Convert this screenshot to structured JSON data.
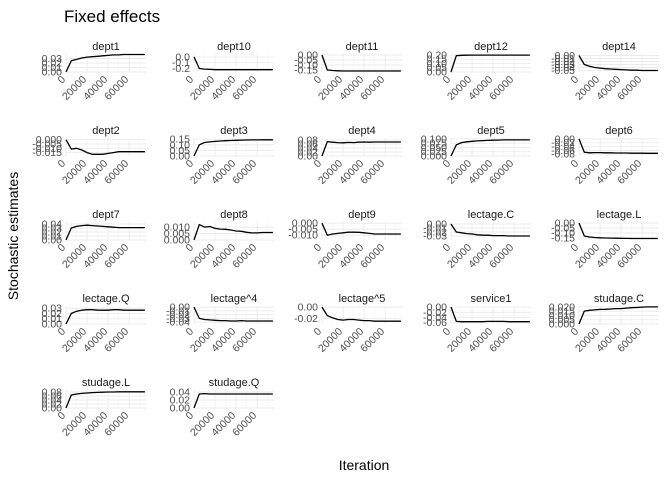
{
  "chart_data": {
    "type": "line",
    "title": "Fixed effects",
    "xlabel": "Iteration",
    "ylabel": "Stochastic estimates",
    "xlim": [
      0,
      76000
    ],
    "x_ticks": [
      "0",
      "20000",
      "40000",
      "60000"
    ],
    "x": [
      0,
      5000,
      10000,
      15000,
      20000,
      25000,
      30000,
      35000,
      40000,
      45000,
      50000,
      55000,
      60000,
      65000,
      70000,
      75000
    ],
    "grid": true,
    "legend": "none",
    "panels": [
      {
        "name": "dept1",
        "ylim": [
          0,
          0.04
        ],
        "y_ticks": [
          "0.00",
          "0.01",
          "0.02",
          "0.03"
        ],
        "values": [
          0.0,
          0.025,
          0.028,
          0.031,
          0.033,
          0.034,
          0.035,
          0.036,
          0.037,
          0.038,
          0.038,
          0.039,
          0.039,
          0.039,
          0.039,
          0.039
        ]
      },
      {
        "name": "dept10",
        "ylim": [
          -0.26,
          0.05
        ],
        "y_ticks": [
          "0.0",
          "-0.1",
          "-0.2"
        ],
        "values": [
          0.0,
          -0.2,
          -0.21,
          -0.215,
          -0.22,
          -0.22,
          -0.22,
          -0.22,
          -0.22,
          -0.22,
          -0.22,
          -0.22,
          -0.22,
          -0.22,
          -0.22,
          -0.22
        ]
      },
      {
        "name": "dept11",
        "ylim": [
          -0.17,
          0.01
        ],
        "y_ticks": [
          "0.00",
          "-0.05",
          "-0.10",
          "-0.15"
        ],
        "values": [
          0.0,
          -0.15,
          -0.155,
          -0.158,
          -0.16,
          -0.16,
          -0.16,
          -0.16,
          -0.16,
          -0.16,
          -0.16,
          -0.16,
          -0.16,
          -0.16,
          -0.16,
          -0.16
        ]
      },
      {
        "name": "dept12",
        "ylim": [
          0,
          0.21
        ],
        "y_ticks": [
          "0.00",
          "0.05",
          "0.10",
          "0.15",
          "0.20"
        ],
        "values": [
          0.0,
          0.19,
          0.195,
          0.196,
          0.197,
          0.197,
          0.197,
          0.197,
          0.197,
          0.197,
          0.197,
          0.197,
          0.197,
          0.197,
          0.197,
          0.197
        ]
      },
      {
        "name": "dept14",
        "ylim": [
          -0.055,
          0.005
        ],
        "y_ticks": [
          "0.00",
          "-0.01",
          "-0.02",
          "-0.03",
          "-0.04",
          "-0.05"
        ],
        "values": [
          0.0,
          -0.03,
          -0.036,
          -0.04,
          -0.042,
          -0.044,
          -0.045,
          -0.046,
          -0.047,
          -0.048,
          -0.049,
          -0.049,
          -0.05,
          -0.05,
          -0.05,
          -0.05
        ]
      },
      {
        "name": "dept2",
        "ylim": [
          -0.019,
          0.002
        ],
        "y_ticks": [
          "0.000",
          "-0.005",
          "-0.010",
          "-0.015"
        ],
        "values": [
          0.0,
          -0.011,
          -0.01,
          -0.012,
          -0.015,
          -0.017,
          -0.017,
          -0.017,
          -0.016,
          -0.015,
          -0.014,
          -0.014,
          -0.014,
          -0.014,
          -0.014,
          -0.014
        ]
      },
      {
        "name": "dept3",
        "ylim": [
          0,
          0.16
        ],
        "y_ticks": [
          "0.00",
          "0.05",
          "0.10",
          "0.15"
        ],
        "values": [
          0.0,
          0.1,
          0.12,
          0.125,
          0.13,
          0.133,
          0.136,
          0.138,
          0.14,
          0.141,
          0.142,
          0.143,
          0.143,
          0.144,
          0.144,
          0.144
        ]
      },
      {
        "name": "dept4",
        "ylim": [
          0,
          0.09
        ],
        "y_ticks": [
          "0.00",
          "0.02",
          "0.04",
          "0.06",
          "0.08"
        ],
        "values": [
          0.0,
          0.072,
          0.069,
          0.067,
          0.066,
          0.068,
          0.067,
          0.069,
          0.07,
          0.069,
          0.07,
          0.07,
          0.07,
          0.07,
          0.07,
          0.07
        ]
      },
      {
        "name": "dept5",
        "ylim": [
          0,
          0.105
        ],
        "y_ticks": [
          "0.000",
          "0.025",
          "0.050",
          "0.075",
          "0.100"
        ],
        "values": [
          0.0,
          0.065,
          0.078,
          0.083,
          0.086,
          0.088,
          0.09,
          0.091,
          0.092,
          0.093,
          0.094,
          0.094,
          0.094,
          0.094,
          0.094,
          0.094
        ]
      },
      {
        "name": "dept6",
        "ylim": [
          -0.09,
          0.005
        ],
        "y_ticks": [
          "0.00",
          "-0.02",
          "-0.04",
          "-0.06",
          "-0.08"
        ],
        "values": [
          0.0,
          -0.07,
          -0.073,
          -0.072,
          -0.072,
          -0.073,
          -0.073,
          -0.074,
          -0.074,
          -0.074,
          -0.075,
          -0.075,
          -0.075,
          -0.076,
          -0.076,
          -0.076
        ]
      },
      {
        "name": "dept7",
        "ylim": [
          0,
          0.045
        ],
        "y_ticks": [
          "0.00",
          "0.01",
          "0.02",
          "0.03",
          "0.04"
        ],
        "values": [
          0.0,
          0.03,
          0.034,
          0.036,
          0.037,
          0.036,
          0.035,
          0.034,
          0.033,
          0.032,
          0.031,
          0.031,
          0.031,
          0.031,
          0.031,
          0.031
        ]
      },
      {
        "name": "dept8",
        "ylim": [
          0,
          0.014
        ],
        "y_ticks": [
          "0.000",
          "0.005",
          "0.010"
        ],
        "values": [
          0.0,
          0.012,
          0.01,
          0.0105,
          0.009,
          0.0085,
          0.0083,
          0.0078,
          0.007,
          0.0068,
          0.006,
          0.0055,
          0.0055,
          0.0058,
          0.0058,
          0.0058
        ]
      },
      {
        "name": "dept9",
        "ylim": [
          -0.014,
          0.001
        ],
        "y_ticks": [
          "0.000",
          "-0.005",
          "-0.010"
        ],
        "values": [
          0.0,
          -0.01,
          -0.009,
          -0.0085,
          -0.008,
          -0.0075,
          -0.0075,
          -0.0076,
          -0.008,
          -0.0085,
          -0.009,
          -0.009,
          -0.009,
          -0.009,
          -0.009,
          -0.009
        ]
      },
      {
        "name": "lectage.C",
        "ylim": [
          -0.04,
          0.005
        ],
        "y_ticks": [
          "0.00",
          "-0.01",
          "-0.02",
          "-0.03"
        ],
        "values": [
          0.0,
          -0.02,
          -0.022,
          -0.024,
          -0.025,
          -0.027,
          -0.028,
          -0.028,
          -0.029,
          -0.029,
          -0.029,
          -0.03,
          -0.03,
          -0.03,
          -0.03,
          -0.03
        ]
      },
      {
        "name": "lectage.L",
        "ylim": [
          -0.17,
          0.01
        ],
        "y_ticks": [
          "0.00",
          "-0.05",
          "-0.10",
          "-0.15"
        ],
        "values": [
          0.0,
          -0.13,
          -0.14,
          -0.145,
          -0.148,
          -0.15,
          -0.151,
          -0.152,
          -0.153,
          -0.154,
          -0.155,
          -0.155,
          -0.155,
          -0.155,
          -0.155,
          -0.155
        ]
      },
      {
        "name": "lectage.Q",
        "ylim": [
          0,
          0.034
        ],
        "y_ticks": [
          "0.00",
          "0.01",
          "0.02",
          "0.03"
        ],
        "values": [
          0.0,
          0.02,
          0.024,
          0.026,
          0.027,
          0.027,
          0.026,
          0.026,
          0.026,
          0.027,
          0.027,
          0.026,
          0.026,
          0.026,
          0.026,
          0.026
        ]
      },
      {
        "name": "lectage^4",
        "ylim": [
          -0.045,
          0.003
        ],
        "y_ticks": [
          "0.00",
          "-0.01",
          "-0.02",
          "-0.03",
          "-0.04"
        ],
        "values": [
          0.0,
          -0.03,
          -0.033,
          -0.034,
          -0.035,
          -0.036,
          -0.036,
          -0.037,
          -0.037,
          -0.036,
          -0.037,
          -0.037,
          -0.037,
          -0.037,
          -0.037,
          -0.037
        ]
      },
      {
        "name": "lectage^5",
        "ylim": [
          -0.03,
          0.002
        ],
        "y_ticks": [
          "0.00",
          "-0.02"
        ],
        "values": [
          0.0,
          -0.015,
          -0.019,
          -0.022,
          -0.023,
          -0.022,
          -0.022,
          -0.023,
          -0.024,
          -0.024,
          -0.025,
          -0.025,
          -0.025,
          -0.025,
          -0.025,
          -0.025
        ]
      },
      {
        "name": "service1",
        "ylim": [
          -0.065,
          0.004
        ],
        "y_ticks": [
          "0.00",
          "-0.02",
          "-0.04",
          "-0.06"
        ],
        "values": [
          0.0,
          -0.055,
          -0.056,
          -0.056,
          -0.056,
          -0.056,
          -0.056,
          -0.055,
          -0.055,
          -0.055,
          -0.055,
          -0.056,
          -0.056,
          -0.056,
          -0.056,
          -0.056
        ]
      },
      {
        "name": "studage.C",
        "ylim": [
          0,
          0.021
        ],
        "y_ticks": [
          "0.000",
          "0.005",
          "0.010",
          "0.015",
          "0.020"
        ],
        "values": [
          0.0,
          0.015,
          0.016,
          0.0165,
          0.017,
          0.0172,
          0.0175,
          0.018,
          0.018,
          0.0185,
          0.019,
          0.0193,
          0.0197,
          0.02,
          0.02,
          0.02
        ]
      },
      {
        "name": "studage.L",
        "ylim": [
          0,
          0.09
        ],
        "y_ticks": [
          "0.00",
          "0.02",
          "0.04",
          "0.06",
          "0.08"
        ],
        "values": [
          0.0,
          0.065,
          0.07,
          0.073,
          0.075,
          0.077,
          0.078,
          0.079,
          0.08,
          0.08,
          0.081,
          0.081,
          0.081,
          0.081,
          0.081,
          0.081
        ]
      },
      {
        "name": "studage.Q",
        "ylim": [
          0,
          0.045
        ],
        "y_ticks": [
          "0.00",
          "0.02",
          "0.04"
        ],
        "values": [
          0.0,
          0.035,
          0.036,
          0.035,
          0.035,
          0.035,
          0.035,
          0.035,
          0.035,
          0.035,
          0.035,
          0.035,
          0.035,
          0.035,
          0.035,
          0.035
        ]
      }
    ]
  }
}
